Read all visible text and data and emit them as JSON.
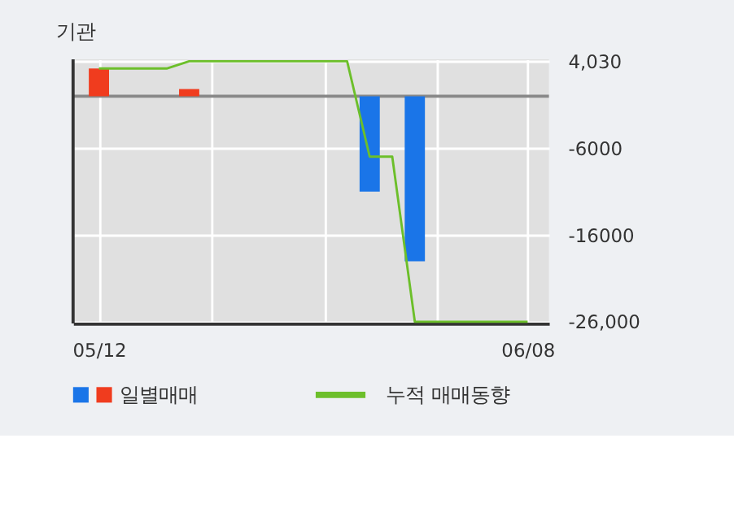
{
  "chart_data": {
    "type": "bar",
    "title": "기관",
    "categories": [
      "05/12",
      null,
      null,
      null,
      null,
      null,
      null,
      null,
      null,
      null,
      null,
      null,
      null,
      null,
      null,
      null,
      null,
      null,
      null,
      "06/08"
    ],
    "series": [
      {
        "name": "일별매매",
        "colors": [
          "#f03c1e",
          null,
          null,
          null,
          "#f03c1e",
          null,
          null,
          null,
          null,
          null,
          null,
          null,
          "#1a75e8",
          null,
          "#1a75e8",
          null,
          null,
          null,
          null,
          null
        ],
        "values": [
          3200,
          null,
          null,
          null,
          830,
          null,
          null,
          null,
          null,
          null,
          null,
          null,
          -11000,
          null,
          -19030,
          null,
          null,
          null,
          null,
          null
        ]
      },
      {
        "name": "누적 매매동향",
        "type": "line",
        "color": "#6cbf2a",
        "values": [
          3200,
          3200,
          3200,
          3200,
          4030,
          4030,
          4030,
          4030,
          4030,
          4030,
          4030,
          4030,
          -6970,
          -6970,
          -26000,
          -26000,
          -26000,
          -26000,
          -26000,
          -26000
        ]
      }
    ],
    "ylim": [
      -26200,
      4250
    ],
    "yticks": [
      {
        "value": 4030,
        "label": "4,030"
      },
      -6000,
      -16000,
      {
        "value": -26000,
        "label": "-26,000"
      }
    ],
    "ref_lines": [
      {
        "axis": "y",
        "value": 0,
        "color": "#888888"
      }
    ],
    "grid": true,
    "legend": "bottom"
  }
}
